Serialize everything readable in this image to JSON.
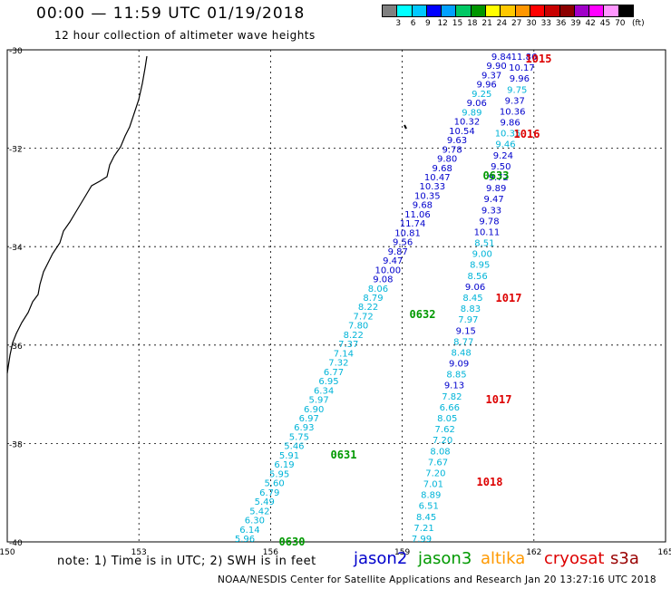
{
  "header": {
    "title": "00:00 — 11:59 UTC 01/19/2018",
    "subtitle": "12 hour collection of altimeter wave heights"
  },
  "colorbar": {
    "colors": [
      "#808080",
      "#00ffff",
      "#00c8ff",
      "#0000ff",
      "#00a0ff",
      "#00c864",
      "#009600",
      "#ffff00",
      "#ffc800",
      "#ff9600",
      "#ff0000",
      "#c80000",
      "#8c0000",
      "#a000c8",
      "#ff00ff",
      "#ff96ff",
      "#000000"
    ],
    "labels": [
      "3",
      "6",
      "9",
      "12",
      "15",
      "18",
      "21",
      "24",
      "27",
      "30",
      "33",
      "36",
      "39",
      "42",
      "45",
      "70"
    ],
    "unit": "(ft)"
  },
  "axes": {
    "lat_ticks": [
      "-30",
      "-32",
      "-34",
      "-36",
      "-38",
      "-40"
    ],
    "lon_ticks": [
      "150",
      "153",
      "156",
      "159",
      "162",
      "165"
    ]
  },
  "satellite_colors": {
    "jason2": "#0000cc",
    "jason3": "#009900",
    "altika": "#ff9900",
    "cryosat": "#dd0000",
    "s3a": "#990000",
    "light": "#00b4d8"
  },
  "tracks": [
    {
      "name": "pass-0630-0632",
      "values": [
        "5.96",
        "6.14",
        "6.30",
        "5.42",
        "5.49",
        "6.79",
        "5.60",
        "5.95",
        "6.19",
        "5.91",
        "5.46",
        "5.75",
        "6.93",
        "6.97",
        "6.90",
        "5.97",
        "6.34",
        "6.95",
        "6.77",
        "7.32",
        "7.14",
        "7.37",
        "8.22",
        "7.80",
        "7.72",
        "8.22",
        "8.79",
        "8.06",
        "9.08",
        "10.00",
        "9.47",
        "9.87",
        "9.56",
        "10.81",
        "11.74",
        "11.06",
        "9.68",
        "10.35",
        "10.33",
        "10.47",
        "9.68",
        "9.80",
        "9.78",
        "9.63",
        "10.54",
        "10.32",
        "9.89",
        "9.06",
        "9.25",
        "9.96",
        "9.37",
        "9.90",
        "9.84"
      ],
      "colors": [
        "l",
        "l",
        "l",
        "l",
        "l",
        "l",
        "l",
        "l",
        "l",
        "l",
        "l",
        "l",
        "l",
        "l",
        "l",
        "l",
        "l",
        "l",
        "l",
        "l",
        "l",
        "l",
        "l",
        "l",
        "l",
        "l",
        "l",
        "l",
        "b",
        "b",
        "b",
        "b",
        "b",
        "b",
        "b",
        "b",
        "b",
        "b",
        "b",
        "b",
        "b",
        "b",
        "b",
        "b",
        "b",
        "b",
        "l",
        "b",
        "l",
        "b",
        "b",
        "b",
        "b"
      ]
    },
    {
      "name": "pass-1015-1018",
      "values": [
        "11.86",
        "10.17",
        "9.96",
        "9.75",
        "9.37",
        "10.36",
        "9.86",
        "10.35",
        "9.46",
        "9.24",
        "9.50",
        "9.72",
        "9.89",
        "9.47",
        "9.33",
        "9.78",
        "10.11",
        "8.51",
        "9.00",
        "8.95",
        "8.56",
        "9.06",
        "8.45",
        "8.83",
        "7.97",
        "9.15",
        "8.77",
        "8.48",
        "9.09",
        "8.85",
        "9.13",
        "7.82",
        "6.66",
        "8.05",
        "7.62",
        "7.20",
        "8.08",
        "7.67",
        "7.20",
        "7.01",
        "8.89",
        "6.51",
        "8.45",
        "7.21",
        "7.99"
      ],
      "colors": [
        "b",
        "b",
        "b",
        "l",
        "b",
        "b",
        "b",
        "l",
        "l",
        "b",
        "b",
        "b",
        "b",
        "b",
        "b",
        "b",
        "b",
        "l",
        "l",
        "l",
        "l",
        "b",
        "l",
        "l",
        "l",
        "b",
        "l",
        "l",
        "b",
        "l",
        "b",
        "l",
        "l",
        "l",
        "l",
        "l",
        "l",
        "l",
        "l",
        "l",
        "l",
        "l",
        "l",
        "l",
        "l"
      ]
    }
  ],
  "pass_labels": [
    {
      "text": "0630",
      "sat": "jason3"
    },
    {
      "text": "0631",
      "sat": "jason3"
    },
    {
      "text": "0632",
      "sat": "jason3"
    },
    {
      "text": "0633",
      "sat": "jason3"
    },
    {
      "text": "1015",
      "sat": "cryosat"
    },
    {
      "text": "1016",
      "sat": "cryosat"
    },
    {
      "text": "1017",
      "sat": "cryosat"
    },
    {
      "text": "1017",
      "sat": "cryosat"
    },
    {
      "text": "1018",
      "sat": "cryosat"
    }
  ],
  "note": "note: 1) Time is in UTC; 2) SWH is in feet",
  "satellites": [
    "jason2",
    "jason3",
    "altika",
    "cryosat",
    "s3a"
  ],
  "footer": "NOAA/NESDIS Center for Satellite Applications and Research   Jan 20 13:27:16 UTC 2018"
}
